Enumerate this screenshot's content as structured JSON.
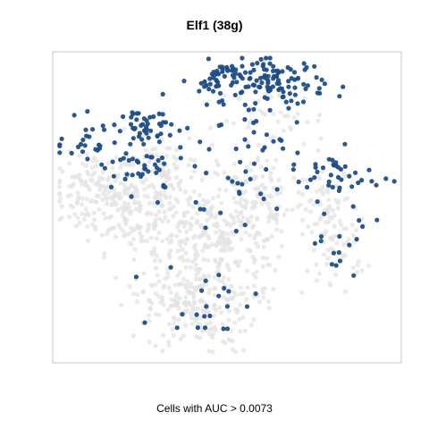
{
  "chart_data": {
    "type": "scatter",
    "title": "Elf1 (38g)",
    "xlabel": "Cells with AUC > 0.0073",
    "ylabel": "",
    "axes_ticks": false,
    "grid": false,
    "legend": "none",
    "colors": {
      "background_cells": "#e3e3e3",
      "active_cells": "#1f4e86",
      "frame": "#c8c8c8"
    },
    "series": [
      {
        "role": "background",
        "clusters": [
          {
            "x": 0.12,
            "y": 0.55,
            "sx": 0.06,
            "sy": 0.06,
            "n": 120
          },
          {
            "x": 0.22,
            "y": 0.5,
            "sx": 0.07,
            "sy": 0.07,
            "n": 110
          },
          {
            "x": 0.38,
            "y": 0.44,
            "sx": 0.1,
            "sy": 0.09,
            "n": 170
          },
          {
            "x": 0.5,
            "y": 0.36,
            "sx": 0.09,
            "sy": 0.08,
            "n": 150
          },
          {
            "x": 0.6,
            "y": 0.52,
            "sx": 0.08,
            "sy": 0.08,
            "n": 110
          },
          {
            "x": 0.43,
            "y": 0.17,
            "sx": 0.08,
            "sy": 0.07,
            "n": 140
          },
          {
            "x": 0.34,
            "y": 0.2,
            "sx": 0.05,
            "sy": 0.05,
            "n": 60
          },
          {
            "x": 0.8,
            "y": 0.5,
            "sx": 0.04,
            "sy": 0.06,
            "n": 50
          },
          {
            "x": 0.82,
            "y": 0.36,
            "sx": 0.04,
            "sy": 0.05,
            "n": 45
          },
          {
            "x": 0.3,
            "y": 0.64,
            "sx": 0.06,
            "sy": 0.05,
            "n": 60
          },
          {
            "x": 0.63,
            "y": 0.78,
            "sx": 0.08,
            "sy": 0.05,
            "n": 40
          }
        ]
      },
      {
        "role": "auc_above_threshold",
        "clusters": [
          {
            "x": 0.64,
            "y": 0.9,
            "sx": 0.07,
            "sy": 0.04,
            "n": 110
          },
          {
            "x": 0.48,
            "y": 0.91,
            "sx": 0.03,
            "sy": 0.03,
            "n": 45
          },
          {
            "x": 0.27,
            "y": 0.76,
            "sx": 0.04,
            "sy": 0.04,
            "n": 45
          },
          {
            "x": 0.12,
            "y": 0.7,
            "sx": 0.05,
            "sy": 0.04,
            "n": 30
          },
          {
            "x": 0.25,
            "y": 0.62,
            "sx": 0.07,
            "sy": 0.04,
            "n": 35
          },
          {
            "x": 0.82,
            "y": 0.6,
            "sx": 0.06,
            "sy": 0.04,
            "n": 35
          },
          {
            "x": 0.52,
            "y": 0.58,
            "sx": 0.09,
            "sy": 0.07,
            "n": 35
          },
          {
            "x": 0.82,
            "y": 0.4,
            "sx": 0.05,
            "sy": 0.07,
            "n": 18
          },
          {
            "x": 0.45,
            "y": 0.2,
            "sx": 0.07,
            "sy": 0.06,
            "n": 22
          },
          {
            "x": 0.59,
            "y": 0.73,
            "sx": 0.06,
            "sy": 0.03,
            "n": 14
          }
        ]
      }
    ]
  }
}
